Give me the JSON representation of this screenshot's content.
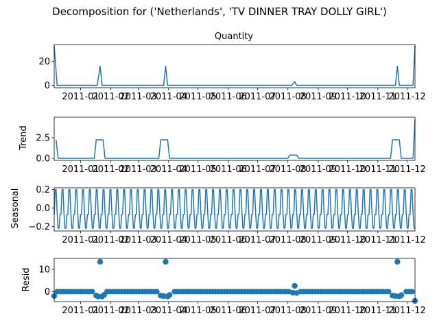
{
  "figure": {
    "suptitle": "Decomposition for ('Netherlands', 'TV DINNER TRAY DOLLY GIRL')",
    "line_color": "#1f77b4",
    "month_labels": [
      "2011-01",
      "2011-02",
      "2011-03",
      "2011-04",
      "2011-05",
      "2011-06",
      "2011-07",
      "2011-08",
      "2011-09",
      "2011-10",
      "2011-11",
      "2011-12"
    ]
  },
  "chart_data": [
    {
      "type": "line",
      "title": "Quantity",
      "ylabel": "",
      "x_range": [
        "2010-12-05",
        "2011-12-09"
      ],
      "ylim": [
        -2,
        34
      ],
      "yticks": [
        0,
        20
      ],
      "ytick_labels": [
        "0",
        "20"
      ],
      "series": [
        {
          "points": [
            [
              "2010-12-05",
              33
            ],
            [
              "2010-12-08",
              0
            ],
            [
              "2011-01-18",
              0
            ],
            [
              "2011-01-21",
              16
            ],
            [
              "2011-01-23",
              0
            ],
            [
              "2011-03-27",
              0
            ],
            [
              "2011-03-29",
              16
            ],
            [
              "2011-03-31",
              0
            ],
            [
              "2011-08-05",
              0
            ],
            [
              "2011-08-08",
              3
            ],
            [
              "2011-08-10",
              0
            ],
            [
              "2011-11-19",
              0
            ],
            [
              "2011-11-21",
              16
            ],
            [
              "2011-11-23",
              0
            ],
            [
              "2011-12-07",
              0
            ],
            [
              "2011-12-09",
              33
            ]
          ]
        }
      ]
    },
    {
      "type": "line",
      "title": "",
      "ylabel": "Trend",
      "x_range": [
        "2010-12-05",
        "2011-12-09"
      ],
      "ylim": [
        -0.25,
        5.0
      ],
      "yticks": [
        0,
        2.5
      ],
      "ytick_labels": [
        "0.0",
        "2.5"
      ],
      "series": [
        {
          "points": [
            [
              "2010-12-07",
              2.2
            ],
            [
              "2010-12-09",
              0
            ],
            [
              "2011-01-15",
              0
            ],
            [
              "2011-01-17",
              2.25
            ],
            [
              "2011-01-24",
              2.25
            ],
            [
              "2011-01-26",
              0
            ],
            [
              "2011-03-22",
              0
            ],
            [
              "2011-03-24",
              2.25
            ],
            [
              "2011-03-31",
              2.25
            ],
            [
              "2011-04-02",
              0
            ],
            [
              "2011-08-01",
              0
            ],
            [
              "2011-08-03",
              0.4
            ],
            [
              "2011-08-10",
              0.4
            ],
            [
              "2011-08-12",
              0
            ],
            [
              "2011-11-14",
              0
            ],
            [
              "2011-11-16",
              2.25
            ],
            [
              "2011-11-23",
              2.25
            ],
            [
              "2011-11-25",
              0
            ],
            [
              "2011-12-07",
              0
            ],
            [
              "2011-12-09",
              4.7
            ]
          ]
        }
      ]
    },
    {
      "type": "line",
      "title": "",
      "ylabel": "Seasonal",
      "x_range": [
        "2010-12-05",
        "2011-12-09"
      ],
      "ylim": [
        -0.25,
        0.22
      ],
      "yticks": [
        -0.2,
        0.0,
        0.2
      ],
      "ytick_labels": [
        "−0.2",
        "0.0",
        "0.2"
      ],
      "period_days": 7,
      "pattern": [
        -0.07,
        0.2,
        0.2,
        -0.05,
        -0.22,
        -0.22,
        -0.07
      ],
      "series": [
        {
          "name": "",
          "start": "2010-12-05",
          "end": "2011-12-09"
        }
      ]
    },
    {
      "type": "scatter",
      "title": "",
      "ylabel": "Resid",
      "x_range": [
        "2010-12-05",
        "2011-12-09"
      ],
      "ylim": [
        -4.5,
        15
      ],
      "yticks": [
        0,
        10
      ],
      "ytick_labels": [
        "0",
        "10"
      ],
      "baseline": 0,
      "step_days": 3,
      "outliers": [
        [
          "2010-12-05",
          -2
        ],
        [
          "2011-01-17",
          -1.8
        ],
        [
          "2011-01-19",
          -2.2
        ],
        [
          "2011-01-21",
          13.5
        ],
        [
          "2011-01-23",
          -2.2
        ],
        [
          "2011-01-25",
          -1.5
        ],
        [
          "2011-03-24",
          -1.8
        ],
        [
          "2011-03-27",
          -2.0
        ],
        [
          "2011-03-29",
          13.5
        ],
        [
          "2011-03-31",
          -2.2
        ],
        [
          "2011-04-02",
          -1.5
        ],
        [
          "2011-08-06",
          -0.5
        ],
        [
          "2011-08-08",
          2.6
        ],
        [
          "2011-08-10",
          -0.6
        ],
        [
          "2011-11-16",
          -1.8
        ],
        [
          "2011-11-19",
          -2.0
        ],
        [
          "2011-11-21",
          13.5
        ],
        [
          "2011-11-23",
          -2.1
        ],
        [
          "2011-11-25",
          -1.6
        ],
        [
          "2011-12-09",
          -4.2
        ]
      ]
    }
  ]
}
